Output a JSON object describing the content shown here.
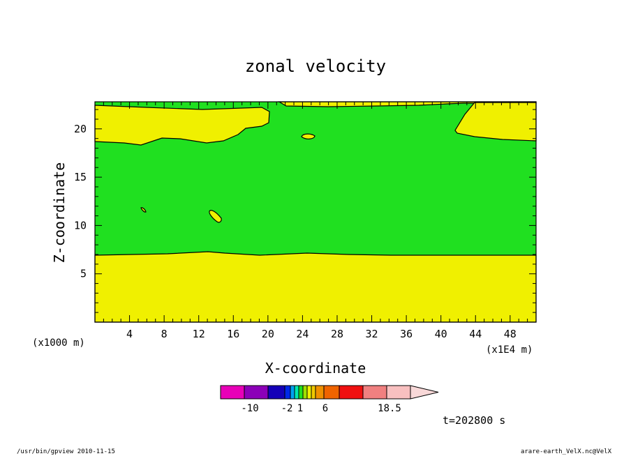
{
  "chart_data": {
    "type": "heatmap",
    "subtype": "filled-contour",
    "title": "zonal velocity",
    "xlabel": "X-coordinate",
    "ylabel": "Z-coordinate",
    "x_scale_note": "(x1000 m)",
    "x_scale_note_right": "(x1E4 m)",
    "xlim": [
      0,
      51
    ],
    "ylim": [
      0,
      22.8
    ],
    "x_ticks": [
      4,
      8,
      12,
      16,
      20,
      24,
      28,
      32,
      36,
      40,
      44,
      48
    ],
    "y_ticks": [
      5,
      10,
      15,
      20
    ],
    "time_label": "t=202800 s",
    "colorbar": {
      "levels": [
        "-10",
        "-2",
        "1",
        "6",
        "18.5"
      ],
      "colors": [
        "#e800b8",
        "#8c00b8",
        "#1400b8",
        "#0028e8",
        "#00a0f0",
        "#00e8b0",
        "#20e020",
        "#a0e000",
        "#f0f000",
        "#f0c800",
        "#f09000",
        "#f06400",
        "#f01010",
        "#f08080",
        "#f8c0c0",
        "#f8d8d8"
      ]
    },
    "regions": [
      {
        "name": "upper band",
        "color": "#20e020"
      },
      {
        "name": "lower layer",
        "color": "#f0f000"
      }
    ],
    "grid": false
  },
  "footer": {
    "left": "/usr/bin/gpview   2010-11-15",
    "right": "arare-earth_VelX.nc@VelX"
  },
  "colors": {
    "green": "#20e020",
    "yellow": "#f0f000"
  }
}
